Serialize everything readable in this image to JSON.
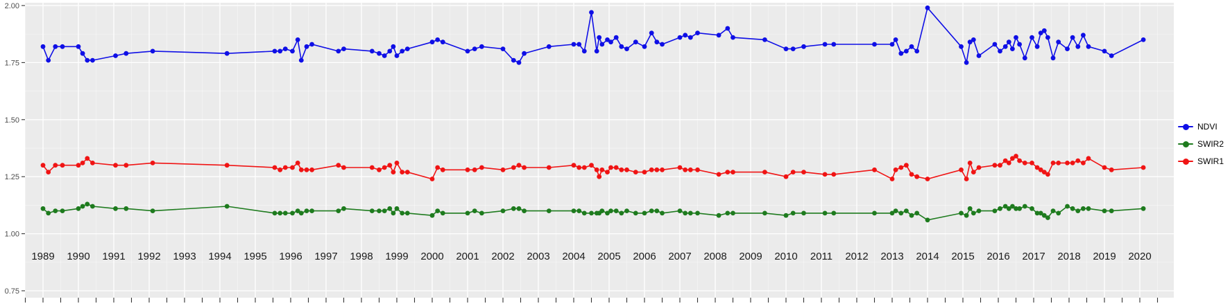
{
  "theme": {
    "panel_bg": "#EBEBEB",
    "grid_major": "#FFFFFF",
    "grid_minor": "#FFFFFF",
    "tick_color": "#333333",
    "y_label_color": "#4D4D4D",
    "x_label_color": "#1A1A1A"
  },
  "chart_data": {
    "type": "line",
    "title": "",
    "xlabel": "",
    "ylabel": "",
    "grid": true,
    "legend_position": "right",
    "xlim": [
      1988.5,
      2021.0
    ],
    "ylim": [
      0.75,
      2.0
    ],
    "yticks": [
      0.75,
      1.0,
      1.25,
      1.5,
      1.75,
      2.0
    ],
    "ytick_labels": [
      "0.75",
      "1.00",
      "1.25",
      "1.50",
      "1.75",
      "2.00"
    ],
    "xticks": [
      1989,
      1990,
      1991,
      1992,
      1993,
      1994,
      1995,
      1996,
      1997,
      1998,
      1999,
      2000,
      2001,
      2002,
      2003,
      2004,
      2005,
      2006,
      2007,
      2008,
      2009,
      2010,
      2011,
      2012,
      2013,
      2014,
      2015,
      2016,
      2017,
      2018,
      2019,
      2020
    ],
    "legend": [
      "NDVI",
      "SWIR2",
      "SWIR1"
    ],
    "x": [
      1989.0,
      1989.15,
      1989.35,
      1989.55,
      1990.0,
      1990.12,
      1990.25,
      1990.4,
      1991.05,
      1991.35,
      1992.1,
      1994.2,
      1995.55,
      1995.7,
      1995.85,
      1996.05,
      1996.2,
      1996.3,
      1996.45,
      1996.6,
      1997.35,
      1997.5,
      1998.3,
      1998.5,
      1998.65,
      1998.8,
      1998.9,
      1999.0,
      1999.15,
      1999.3,
      2000.0,
      2000.15,
      2000.3,
      2001.0,
      2001.2,
      2001.4,
      2002.0,
      2002.3,
      2002.45,
      2002.6,
      2003.3,
      2004.0,
      2004.15,
      2004.3,
      2004.5,
      2004.65,
      2004.72,
      2004.8,
      2004.95,
      2005.05,
      2005.2,
      2005.35,
      2005.5,
      2005.75,
      2006.0,
      2006.2,
      2006.35,
      2006.5,
      2007.0,
      2007.15,
      2007.3,
      2007.5,
      2008.1,
      2008.35,
      2008.5,
      2009.4,
      2010.0,
      2010.2,
      2010.5,
      2011.1,
      2011.35,
      2012.5,
      2013.0,
      2013.1,
      2013.25,
      2013.4,
      2013.55,
      2013.7,
      2014.0,
      2014.95,
      2015.1,
      2015.2,
      2015.3,
      2015.45,
      2015.9,
      2016.05,
      2016.2,
      2016.3,
      2016.4,
      2016.5,
      2016.6,
      2016.75,
      2016.95,
      2017.1,
      2017.2,
      2017.3,
      2017.4,
      2017.55,
      2017.7,
      2017.95,
      2018.1,
      2018.25,
      2018.4,
      2018.55,
      2019.0,
      2019.2,
      2020.1
    ],
    "series": [
      {
        "name": "NDVI",
        "color": "#0F0FE6",
        "values": [
          1.82,
          1.76,
          1.82,
          1.82,
          1.82,
          1.79,
          1.76,
          1.76,
          1.78,
          1.79,
          1.8,
          1.79,
          1.8,
          1.8,
          1.81,
          1.8,
          1.85,
          1.76,
          1.82,
          1.83,
          1.8,
          1.81,
          1.8,
          1.79,
          1.78,
          1.8,
          1.82,
          1.78,
          1.8,
          1.81,
          1.84,
          1.85,
          1.84,
          1.8,
          1.81,
          1.82,
          1.81,
          1.76,
          1.75,
          1.79,
          1.82,
          1.83,
          1.83,
          1.8,
          1.97,
          1.8,
          1.86,
          1.83,
          1.85,
          1.84,
          1.86,
          1.82,
          1.81,
          1.84,
          1.82,
          1.88,
          1.84,
          1.83,
          1.86,
          1.87,
          1.86,
          1.88,
          1.87,
          1.9,
          1.86,
          1.85,
          1.81,
          1.81,
          1.82,
          1.83,
          1.83,
          1.83,
          1.83,
          1.85,
          1.79,
          1.8,
          1.82,
          1.8,
          1.99,
          1.82,
          1.75,
          1.84,
          1.85,
          1.78,
          1.83,
          1.8,
          1.82,
          1.84,
          1.81,
          1.86,
          1.83,
          1.77,
          1.86,
          1.82,
          1.88,
          1.89,
          1.86,
          1.77,
          1.84,
          1.81,
          1.86,
          1.82,
          1.87,
          1.82,
          1.8,
          1.78,
          1.85
        ]
      },
      {
        "name": "SWIR2",
        "color": "#1E7B1E",
        "values": [
          1.11,
          1.09,
          1.1,
          1.1,
          1.11,
          1.12,
          1.13,
          1.12,
          1.11,
          1.11,
          1.1,
          1.12,
          1.09,
          1.09,
          1.09,
          1.09,
          1.1,
          1.09,
          1.1,
          1.1,
          1.1,
          1.11,
          1.1,
          1.1,
          1.1,
          1.11,
          1.09,
          1.11,
          1.09,
          1.09,
          1.08,
          1.1,
          1.09,
          1.09,
          1.1,
          1.09,
          1.1,
          1.11,
          1.11,
          1.1,
          1.1,
          1.1,
          1.1,
          1.09,
          1.09,
          1.09,
          1.09,
          1.1,
          1.09,
          1.1,
          1.1,
          1.09,
          1.1,
          1.09,
          1.09,
          1.1,
          1.1,
          1.09,
          1.1,
          1.09,
          1.09,
          1.09,
          1.08,
          1.09,
          1.09,
          1.09,
          1.08,
          1.09,
          1.09,
          1.09,
          1.09,
          1.09,
          1.09,
          1.1,
          1.09,
          1.1,
          1.08,
          1.09,
          1.06,
          1.09,
          1.08,
          1.11,
          1.09,
          1.1,
          1.1,
          1.11,
          1.12,
          1.11,
          1.12,
          1.11,
          1.11,
          1.12,
          1.11,
          1.09,
          1.09,
          1.08,
          1.07,
          1.1,
          1.09,
          1.12,
          1.11,
          1.1,
          1.11,
          1.11,
          1.1,
          1.1,
          1.11
        ]
      },
      {
        "name": "SWIR1",
        "color": "#F01414",
        "values": [
          1.3,
          1.27,
          1.3,
          1.3,
          1.3,
          1.31,
          1.33,
          1.31,
          1.3,
          1.3,
          1.31,
          1.3,
          1.29,
          1.28,
          1.29,
          1.29,
          1.31,
          1.28,
          1.28,
          1.28,
          1.3,
          1.29,
          1.29,
          1.28,
          1.29,
          1.3,
          1.27,
          1.31,
          1.27,
          1.27,
          1.24,
          1.29,
          1.28,
          1.28,
          1.28,
          1.29,
          1.28,
          1.29,
          1.3,
          1.29,
          1.29,
          1.3,
          1.29,
          1.29,
          1.3,
          1.28,
          1.25,
          1.28,
          1.27,
          1.29,
          1.29,
          1.28,
          1.28,
          1.27,
          1.27,
          1.28,
          1.28,
          1.28,
          1.29,
          1.28,
          1.28,
          1.28,
          1.26,
          1.27,
          1.27,
          1.27,
          1.25,
          1.27,
          1.27,
          1.26,
          1.26,
          1.28,
          1.24,
          1.28,
          1.29,
          1.3,
          1.26,
          1.25,
          1.24,
          1.28,
          1.24,
          1.31,
          1.27,
          1.29,
          1.3,
          1.3,
          1.32,
          1.31,
          1.33,
          1.34,
          1.32,
          1.31,
          1.31,
          1.29,
          1.28,
          1.27,
          1.26,
          1.31,
          1.31,
          1.31,
          1.31,
          1.32,
          1.31,
          1.33,
          1.29,
          1.28,
          1.29
        ]
      }
    ]
  }
}
